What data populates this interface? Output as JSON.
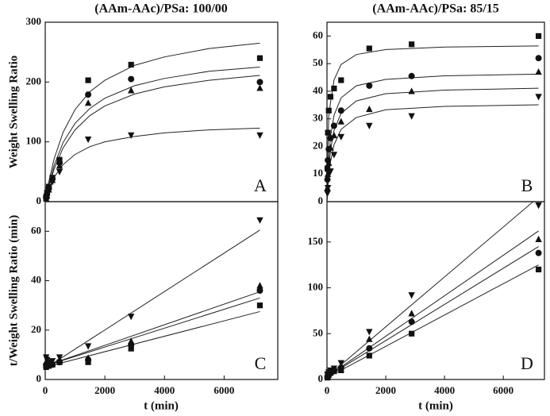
{
  "chart_data": [
    {
      "type": "scatter",
      "title": "(AAm-AAc)/PSa:  100/00",
      "y_label": "Weight Swelling Ratio",
      "panel": "A",
      "xlim": [
        0,
        7800
      ],
      "ylim": [
        0,
        300
      ],
      "yticks": [
        0,
        100,
        200,
        300
      ],
      "x": [
        30,
        60,
        120,
        240,
        480,
        1440,
        2880,
        7200
      ],
      "series": [
        {
          "marker": "square",
          "color": "#111111",
          "values": [
            8,
            15,
            25,
            40,
            70,
            203,
            229,
            240
          ]
        },
        {
          "marker": "circle",
          "color": "#111111",
          "values": [
            6,
            12,
            22,
            38,
            65,
            179,
            205,
            200
          ]
        },
        {
          "marker": "triangle-up",
          "color": "#111111",
          "values": [
            5,
            10,
            20,
            36,
            60,
            165,
            186,
            190
          ]
        },
        {
          "marker": "triangle-down",
          "color": "#111111",
          "values": [
            5,
            10,
            20,
            33,
            50,
            104,
            111,
            111
          ]
        }
      ],
      "fit_x": [
        0,
        100,
        300,
        600,
        1000,
        1500,
        2000,
        3000,
        4000,
        5500,
        7200
      ],
      "fits": [
        {
          "values": [
            0,
            29,
            72,
            116,
            154,
            184,
            203,
            228,
            242,
            256,
            265
          ]
        },
        {
          "values": [
            0,
            24,
            61,
            99,
            131,
            156,
            173,
            194,
            206,
            218,
            225
          ]
        },
        {
          "values": [
            0,
            22,
            55,
            90,
            120,
            144,
            160,
            180,
            192,
            203,
            211
          ]
        },
        {
          "values": [
            0,
            17,
            41,
            62,
            79,
            92,
            100,
            109,
            115,
            120,
            123
          ]
        }
      ]
    },
    {
      "type": "scatter",
      "title": "(AAm-AAc)/PSa: 85/15",
      "panel": "B",
      "xlim": [
        0,
        7400
      ],
      "ylim": [
        0,
        65
      ],
      "yticks": [
        0,
        10,
        20,
        30,
        40,
        50,
        60
      ],
      "x": [
        15,
        30,
        60,
        120,
        240,
        480,
        1440,
        2880,
        7200
      ],
      "series": [
        {
          "marker": "square",
          "color": "#111111",
          "values": [
            12,
            25,
            33,
            38,
            41,
            44,
            55.5,
            57,
            60
          ]
        },
        {
          "marker": "circle",
          "color": "#111111",
          "values": [
            8,
            15,
            19,
            23,
            27.5,
            33,
            42,
            45.5,
            52
          ]
        },
        {
          "marker": "triangle-up",
          "color": "#111111",
          "values": [
            5,
            10,
            14,
            19.5,
            24,
            29,
            33.5,
            40,
            47
          ]
        },
        {
          "marker": "triangle-down",
          "color": "#111111",
          "values": [
            3,
            5,
            10,
            11,
            17,
            23.5,
            27.5,
            31,
            38
          ]
        }
      ],
      "fit_x": [
        0,
        30,
        60,
        120,
        240,
        480,
        1000,
        2000,
        4000,
        7200
      ],
      "fits": [
        {
          "values": [
            0,
            17.1,
            30.7,
            36,
            44.1,
            49.7,
            53.3,
            55.1,
            56,
            56.4
          ]
        },
        {
          "values": [
            0,
            9.4,
            15.7,
            23.5,
            31.3,
            37.6,
            42,
            44.3,
            45.6,
            46.2
          ]
        },
        {
          "values": [
            0,
            7,
            11,
            18.7,
            25.8,
            32,
            36.5,
            39.1,
            40.4,
            41.1
          ]
        },
        {
          "values": [
            0,
            5.1,
            9,
            14.4,
            20.6,
            26.2,
            30.5,
            33.3,
            34.5,
            35.1
          ]
        }
      ]
    },
    {
      "type": "scatter",
      "y_label": "t/Weight Swelling Ratio (min)",
      "x_label": "t (min)",
      "panel": "C",
      "xlim": [
        0,
        7800
      ],
      "ylim": [
        0,
        72
      ],
      "yticks": [
        0,
        20,
        40,
        60
      ],
      "xticks": [
        0,
        2000,
        4000,
        6000
      ],
      "x": [
        30,
        60,
        120,
        240,
        480,
        1440,
        2880,
        7200
      ],
      "series": [
        {
          "marker": "square",
          "color": "#111111",
          "values": [
            5,
            5.5,
            5.5,
            6,
            7,
            7,
            12.5,
            30
          ]
        },
        {
          "marker": "circle",
          "color": "#111111",
          "values": [
            6,
            6.5,
            6,
            6,
            7,
            8,
            14,
            36
          ]
        },
        {
          "marker": "triangle-up",
          "color": "#111111",
          "values": [
            6,
            7,
            6,
            6.5,
            8,
            8.7,
            15.5,
            38
          ]
        },
        {
          "marker": "triangle-down",
          "color": "#111111",
          "values": [
            9,
            8,
            7,
            7.5,
            9,
            13.5,
            25.5,
            64.5
          ]
        }
      ],
      "fit_x": [
        0,
        7200
      ],
      "fits": [
        {
          "values": [
            5,
            27.5
          ]
        },
        {
          "values": [
            5.5,
            33
          ]
        },
        {
          "values": [
            5.5,
            35.5
          ]
        },
        {
          "values": [
            4.5,
            60.5
          ]
        }
      ]
    },
    {
      "type": "scatter",
      "x_label": "t (min)",
      "panel": "D",
      "xlim": [
        0,
        7400
      ],
      "ylim": [
        0,
        194
      ],
      "yticks": [
        0,
        50,
        100,
        150
      ],
      "xticks": [
        0,
        2000,
        4000,
        6000
      ],
      "x": [
        15,
        30,
        60,
        120,
        240,
        480,
        1440,
        2880,
        7200
      ],
      "series": [
        {
          "marker": "square",
          "color": "#111111",
          "values": [
            2,
            3,
            5,
            7,
            9,
            10,
            26,
            50,
            120
          ]
        },
        {
          "marker": "circle",
          "color": "#111111",
          "values": [
            3,
            4,
            6,
            8,
            10,
            13,
            34,
            63,
            138
          ]
        },
        {
          "marker": "triangle-up",
          "color": "#111111",
          "values": [
            4,
            5,
            7,
            9,
            11,
            15,
            44,
            72,
            153
          ]
        },
        {
          "marker": "triangle-down",
          "color": "#111111",
          "values": [
            5,
            6,
            8,
            10,
            12,
            18,
            52,
            92,
            190
          ]
        }
      ],
      "fit_x": [
        0,
        7200
      ],
      "fits": [
        {
          "values": [
            2,
            125
          ]
        },
        {
          "values": [
            3,
            145
          ]
        },
        {
          "values": [
            3,
            162
          ]
        },
        {
          "values": [
            3,
            199
          ]
        }
      ]
    }
  ]
}
